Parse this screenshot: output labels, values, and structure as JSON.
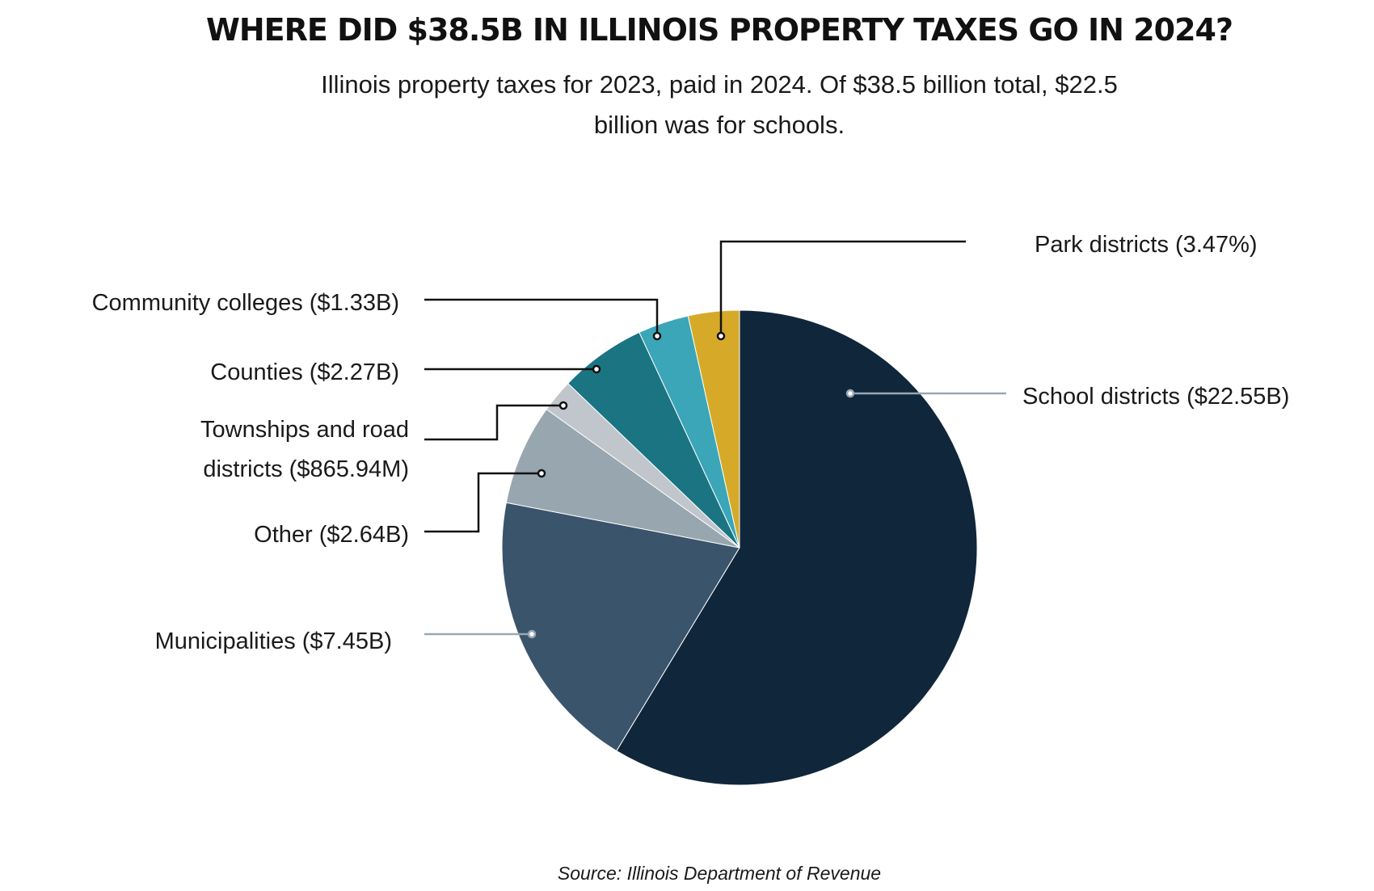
{
  "chart_data": {
    "type": "pie",
    "title": "WHERE DID $38.5B IN ILLINOIS PROPERTY TAXES GO IN 2024?",
    "subtitle_line1": "Illinois property taxes for 2023, paid in 2024. Of $38.5 billion total,  $22.5",
    "subtitle_line2": "billion was for schools.",
    "source": "Source: Illinois Department of Revenue",
    "total_billions": 38.5,
    "slices": [
      {
        "name": "School districts",
        "value": 22.55,
        "label": "School districts ($22.55B)",
        "color": "#10263b"
      },
      {
        "name": "Municipalities",
        "value": 7.45,
        "label": "Municipalities ($7.45B)",
        "color": "#3a546c"
      },
      {
        "name": "Other",
        "value": 2.64,
        "label": "Other ($2.64B)",
        "color": "#98a6b0"
      },
      {
        "name": "Townships and road districts",
        "value": 0.86594,
        "label_line1": "Townships and road",
        "label_line2": "districts ($865.94M)",
        "color": "#c0c6cb"
      },
      {
        "name": "Counties",
        "value": 2.27,
        "label": "Counties ($2.27B)",
        "color": "#1b7482"
      },
      {
        "name": "Community colleges",
        "value": 1.33,
        "label": "Community colleges ($1.33B)",
        "color": "#3aa6b8"
      },
      {
        "name": "Park districts",
        "value": 1.336,
        "percent": 3.47,
        "label": "Park districts (3.47%)",
        "color": "#d6aa28"
      }
    ]
  }
}
